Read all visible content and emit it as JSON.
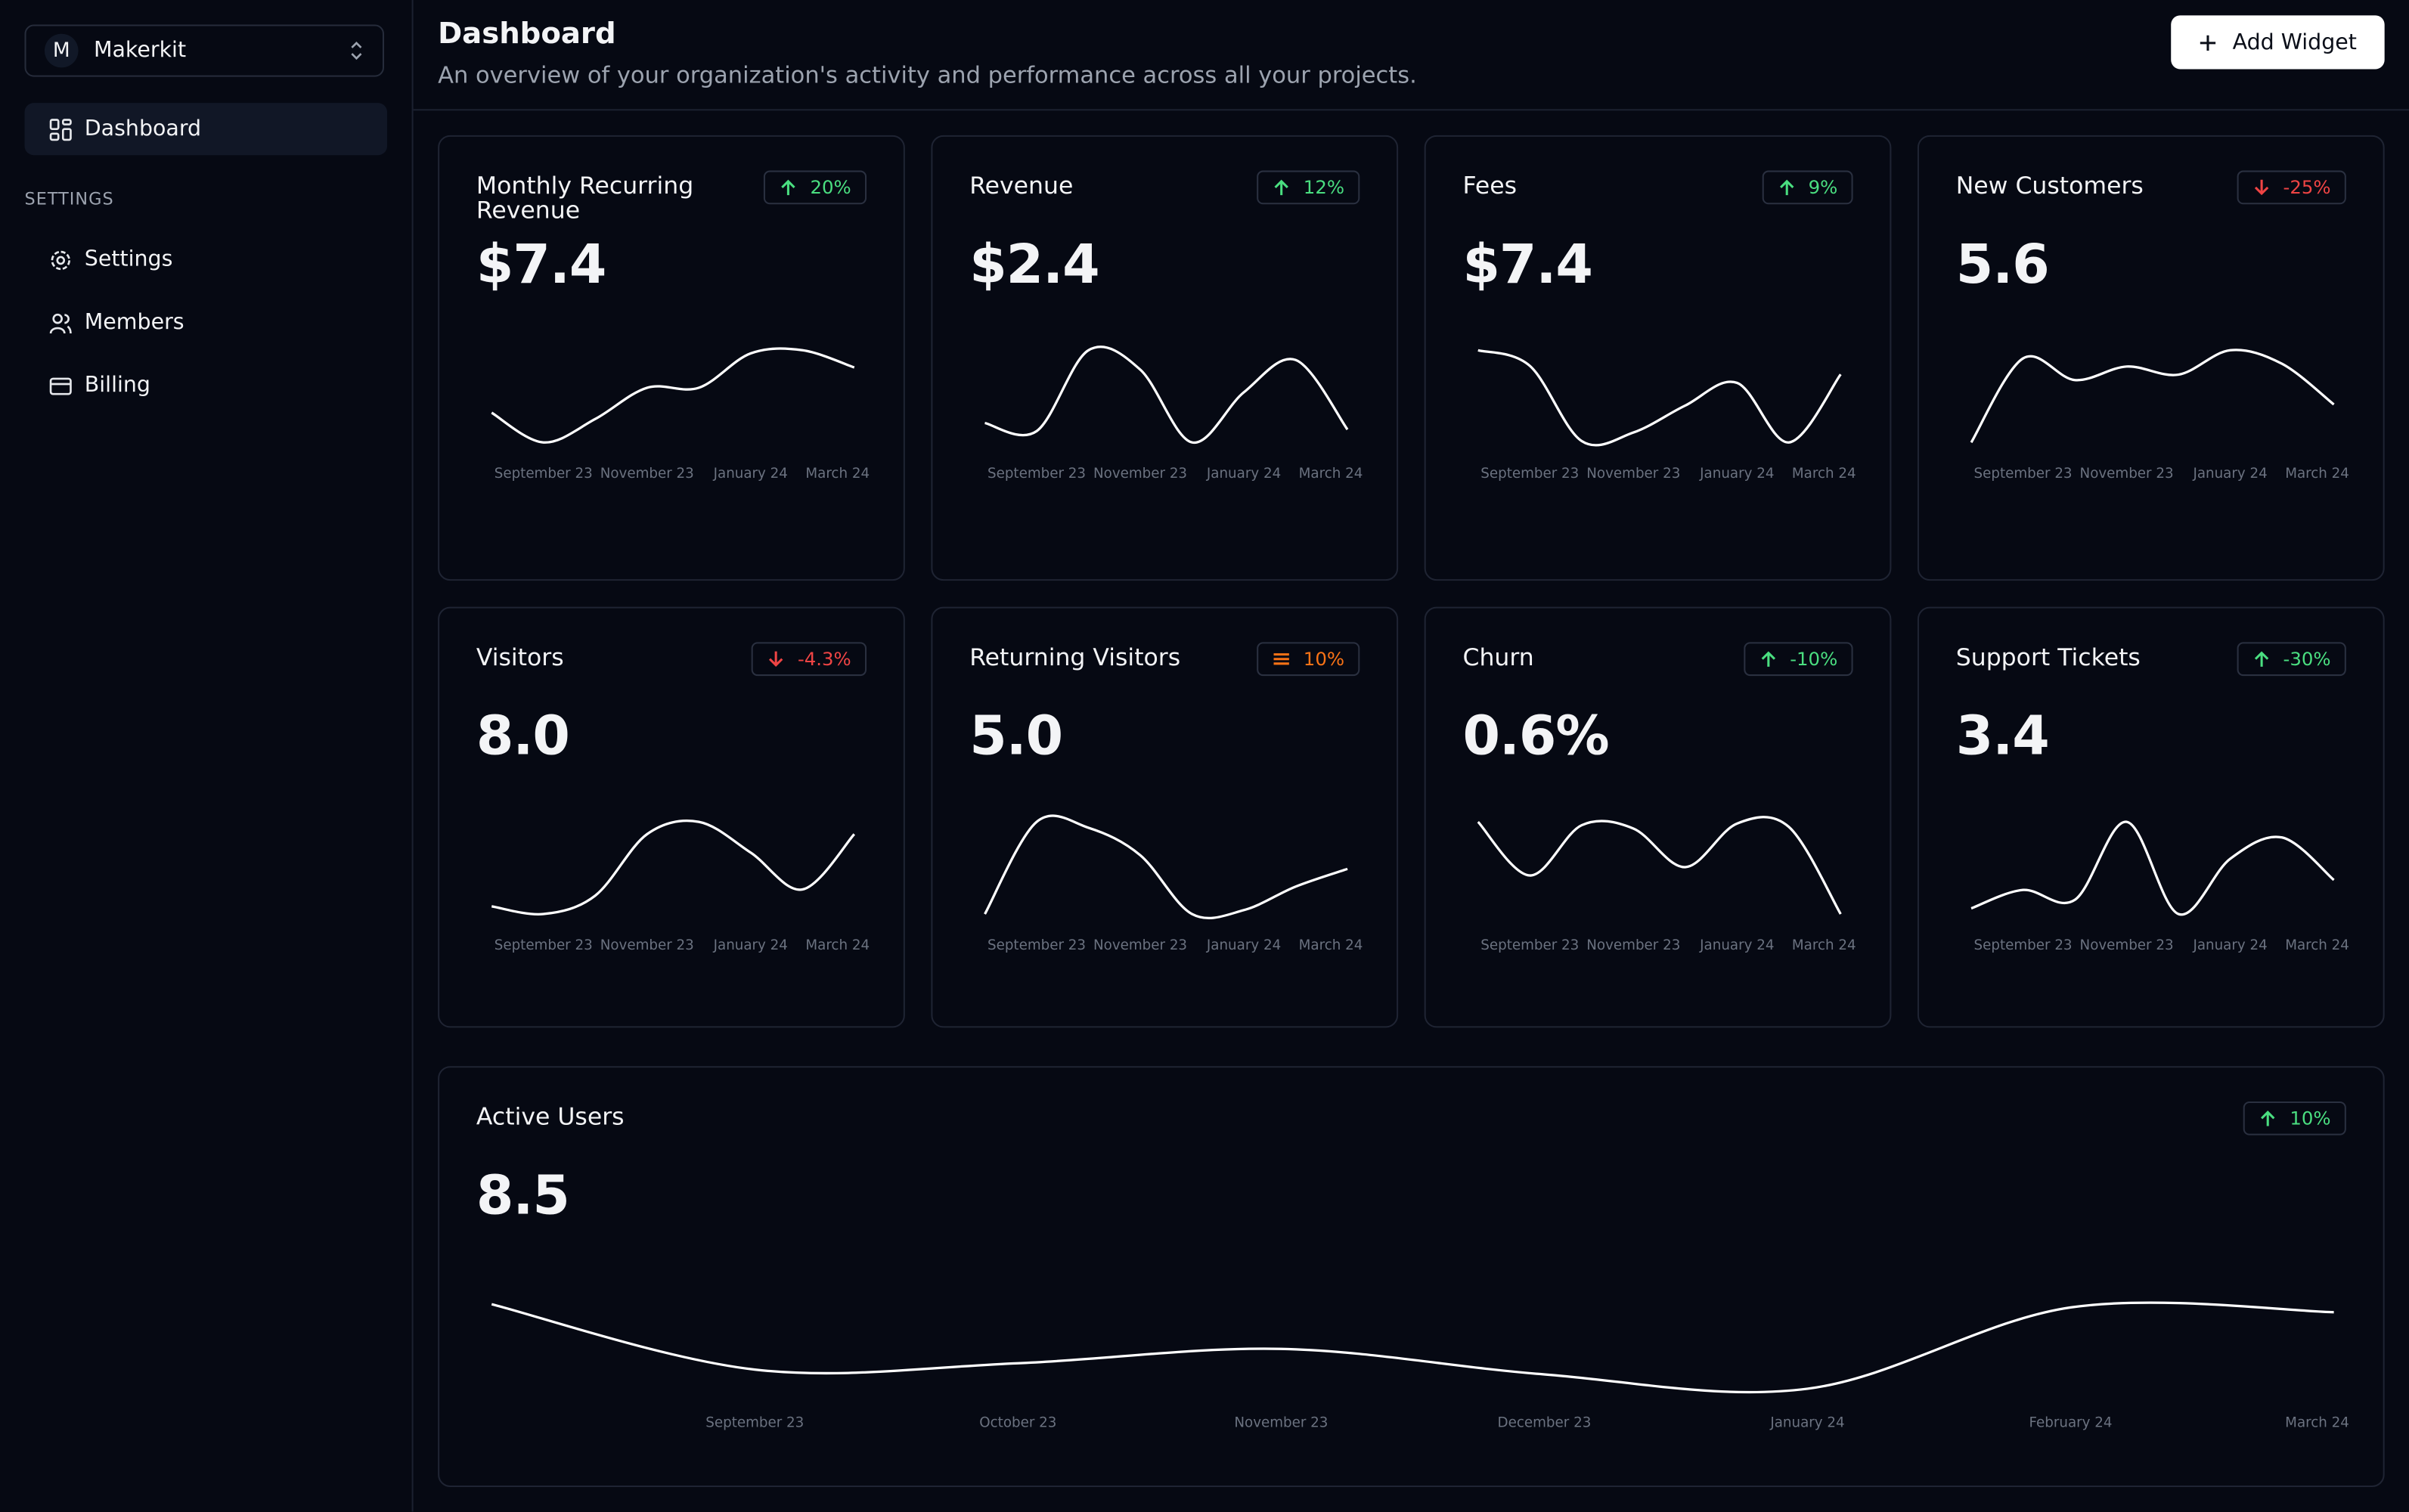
{
  "sidebar": {
    "account": {
      "initial": "M",
      "name": "Makerkit"
    },
    "nav": [
      {
        "label": "Dashboard"
      }
    ],
    "section": "SETTINGS",
    "settings_nav": [
      {
        "label": "Settings"
      },
      {
        "label": "Members"
      },
      {
        "label": "Billing"
      }
    ]
  },
  "header": {
    "title": "Dashboard",
    "subtitle": "An overview of your organization's activity and performance across all your projects.",
    "button": "Add Widget"
  },
  "chart_data": [
    {
      "type": "line",
      "title": "Monthly Recurring Revenue",
      "badge": {
        "label": "20%",
        "trend": "up"
      },
      "headline": "$7.4",
      "categories": [
        null,
        "September 23",
        null,
        "November 23",
        null,
        "January 24",
        null,
        "March 24"
      ],
      "series": [
        {
          "color": "#ffffff",
          "values": [
            27,
            8,
            23,
            43,
            43,
            65,
            67,
            56
          ]
        }
      ]
    },
    {
      "type": "line",
      "title": "Revenue",
      "badge": {
        "label": "12%",
        "trend": "up"
      },
      "headline": "$2.4",
      "categories": [
        null,
        "September 23",
        null,
        "November 23",
        null,
        "January 24",
        null,
        "March 24"
      ],
      "series": [
        {
          "color": "#ffffff",
          "values": [
            19,
            14,
            64,
            52,
            7,
            38,
            58,
            15
          ]
        }
      ]
    },
    {
      "type": "line",
      "title": "Fees",
      "badge": {
        "label": "9%",
        "trend": "up"
      },
      "headline": "$7.4",
      "categories": [
        null,
        "September 23",
        null,
        "November 23",
        null,
        "January 24",
        null,
        "March 24"
      ],
      "series": [
        {
          "color": "#ffffff",
          "values": [
            81,
            70,
            17,
            23,
            42,
            58,
            16,
            64
          ]
        }
      ]
    },
    {
      "type": "line",
      "title": "New Customers",
      "badge": {
        "label": "-25%",
        "trend": "down"
      },
      "headline": "5.6",
      "categories": [
        null,
        "September 23",
        null,
        "November 23",
        null,
        "January 24",
        null,
        "March 24"
      ],
      "series": [
        {
          "color": "#ffffff",
          "values": [
            39,
            70,
            62,
            67,
            64,
            73,
            68,
            53
          ]
        }
      ]
    },
    {
      "type": "line",
      "title": "Visitors",
      "badge": {
        "label": "-4.3%",
        "trend": "down"
      },
      "headline": "8.0",
      "categories": [
        null,
        "September 23",
        null,
        "November 23",
        null,
        "January 24",
        null,
        "March 24"
      ],
      "series": [
        {
          "color": "#ffffff",
          "values": [
            15,
            10,
            22,
            62,
            70,
            50,
            26,
            62
          ]
        }
      ]
    },
    {
      "type": "line",
      "title": "Returning Visitors",
      "badge": {
        "label": "10%",
        "trend": "neutral"
      },
      "headline": "5.0",
      "categories": [
        null,
        "September 23",
        null,
        "November 23",
        null,
        "January 24",
        null,
        "March 24"
      ],
      "series": [
        {
          "color": "#ffffff",
          "values": [
            18,
            65,
            62,
            48,
            18,
            20,
            32,
            41
          ]
        }
      ]
    },
    {
      "type": "line",
      "title": "Churn",
      "badge": {
        "label": "-10%",
        "trend": "up"
      },
      "headline": "0.6%",
      "categories": [
        null,
        "September 23",
        null,
        "November 23",
        null,
        "January 24",
        null,
        "March 24"
      ],
      "series": [
        {
          "color": "#ffffff",
          "values": [
            67,
            35,
            65,
            63,
            40,
            66,
            64,
            12
          ]
        }
      ]
    },
    {
      "type": "line",
      "title": "Support Tickets",
      "badge": {
        "label": "-30%",
        "trend": "up"
      },
      "headline": "3.4",
      "categories": [
        null,
        "September 23",
        null,
        "November 23",
        null,
        "January 24",
        null,
        "March 24"
      ],
      "series": [
        {
          "color": "#ffffff",
          "values": [
            12,
            25,
            18,
            73,
            8,
            47,
            62,
            32
          ]
        }
      ]
    },
    {
      "type": "line",
      "title": "Active Users",
      "badge": {
        "label": "10%",
        "trend": "up"
      },
      "headline": "8.5",
      "categories": [
        null,
        "September 23",
        "October 23",
        "November 23",
        "December 23",
        "January 24",
        "February 24",
        "March 24"
      ],
      "series": [
        {
          "color": "#ffffff",
          "values": [
            61,
            20,
            24,
            33,
            17,
            8,
            59,
            56
          ]
        }
      ]
    }
  ]
}
